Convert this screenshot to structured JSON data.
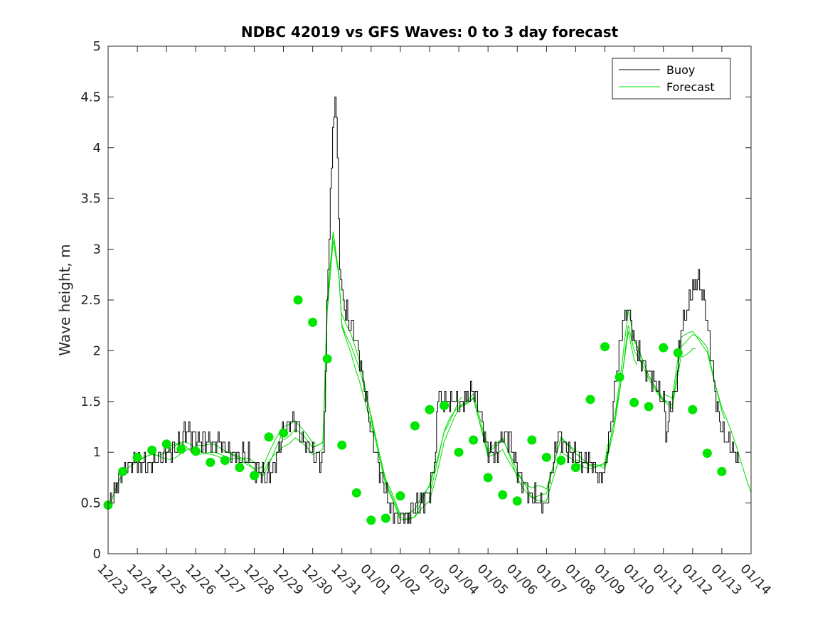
{
  "chart_data": {
    "type": "line",
    "title": "NDBC 42019 vs GFS Waves: 0 to 3 day forecast",
    "xlabel": "",
    "ylabel": "Wave height, m",
    "x_tick_labels": [
      "12/23",
      "12/24",
      "12/25",
      "12/26",
      "12/27",
      "12/28",
      "12/29",
      "12/30",
      "12/31",
      "01/01",
      "01/02",
      "01/03",
      "01/04",
      "01/05",
      "01/06",
      "01/07",
      "01/08",
      "01/09",
      "01/10",
      "01/11",
      "01/12",
      "01/13",
      "01/14"
    ],
    "xlim_days": [
      0,
      22
    ],
    "y_tick_labels": [
      "0",
      "0.5",
      "1",
      "1.5",
      "2",
      "2.5",
      "3",
      "3.5",
      "4",
      "4.5",
      "5"
    ],
    "ylim": [
      0,
      5
    ],
    "grid": false,
    "legend": {
      "position": "top-right",
      "entries": [
        {
          "label": "Buoy",
          "color": "#000000"
        },
        {
          "label": "Forecast",
          "color": "#00dd00"
        }
      ]
    },
    "colors": {
      "buoy": "#000000",
      "forecast": "#00dd00",
      "marker": "#00e600",
      "axis": "#262626"
    },
    "buoy_anchors": [
      [
        0.0,
        0.45
      ],
      [
        0.2,
        0.6
      ],
      [
        0.4,
        0.75
      ],
      [
        0.6,
        0.85
      ],
      [
        1.0,
        0.9
      ],
      [
        1.5,
        0.9
      ],
      [
        2.0,
        1.0
      ],
      [
        2.5,
        1.05
      ],
      [
        2.6,
        1.25
      ],
      [
        3.0,
        1.1
      ],
      [
        3.5,
        1.1
      ],
      [
        4.0,
        1.05
      ],
      [
        4.5,
        0.95
      ],
      [
        4.8,
        0.95
      ],
      [
        5.0,
        0.85
      ],
      [
        5.4,
        0.75
      ],
      [
        5.6,
        0.8
      ],
      [
        5.8,
        1.0
      ],
      [
        6.0,
        1.2
      ],
      [
        6.4,
        1.3
      ],
      [
        6.7,
        1.1
      ],
      [
        7.0,
        1.0
      ],
      [
        7.35,
        0.9
      ],
      [
        7.5,
        2.6
      ],
      [
        7.6,
        3.6
      ],
      [
        7.7,
        4.2
      ],
      [
        7.75,
        4.6
      ],
      [
        7.82,
        4.1
      ],
      [
        7.9,
        3.0
      ],
      [
        8.0,
        2.5
      ],
      [
        8.2,
        2.3
      ],
      [
        8.4,
        2.2
      ],
      [
        8.6,
        1.9
      ],
      [
        8.8,
        1.6
      ],
      [
        9.0,
        1.2
      ],
      [
        9.2,
        0.9
      ],
      [
        9.5,
        0.6
      ],
      [
        9.7,
        0.45
      ],
      [
        9.9,
        0.35
      ],
      [
        10.2,
        0.35
      ],
      [
        10.5,
        0.45
      ],
      [
        10.8,
        0.55
      ],
      [
        11.0,
        0.6
      ],
      [
        11.2,
        1.0
      ],
      [
        11.3,
        1.7
      ],
      [
        11.4,
        1.5
      ],
      [
        11.6,
        1.5
      ],
      [
        11.8,
        1.5
      ],
      [
        12.0,
        1.45
      ],
      [
        12.2,
        1.5
      ],
      [
        12.4,
        1.6
      ],
      [
        12.6,
        1.55
      ],
      [
        12.8,
        1.3
      ],
      [
        13.0,
        1.0
      ],
      [
        13.3,
        1.0
      ],
      [
        13.5,
        1.2
      ],
      [
        13.7,
        1.15
      ],
      [
        13.9,
        0.95
      ],
      [
        14.0,
        0.8
      ],
      [
        14.2,
        0.7
      ],
      [
        14.4,
        0.6
      ],
      [
        14.6,
        0.55
      ],
      [
        14.8,
        0.5
      ],
      [
        15.0,
        0.5
      ],
      [
        15.2,
        0.9
      ],
      [
        15.4,
        1.2
      ],
      [
        15.6,
        1.1
      ],
      [
        15.8,
        1.0
      ],
      [
        16.0,
        0.95
      ],
      [
        16.2,
        0.9
      ],
      [
        16.4,
        0.9
      ],
      [
        16.6,
        0.85
      ],
      [
        16.8,
        0.75
      ],
      [
        17.0,
        0.85
      ],
      [
        17.2,
        1.3
      ],
      [
        17.4,
        1.8
      ],
      [
        17.6,
        2.3
      ],
      [
        17.8,
        2.4
      ],
      [
        18.0,
        2.1
      ],
      [
        18.2,
        1.9
      ],
      [
        18.4,
        1.85
      ],
      [
        18.6,
        1.75
      ],
      [
        18.8,
        1.6
      ],
      [
        19.0,
        1.5
      ],
      [
        19.1,
        1.1
      ],
      [
        19.2,
        1.4
      ],
      [
        19.4,
        1.6
      ],
      [
        19.6,
        2.2
      ],
      [
        19.8,
        2.4
      ],
      [
        20.0,
        2.6
      ],
      [
        20.2,
        2.7
      ],
      [
        20.4,
        2.5
      ],
      [
        20.6,
        2.0
      ],
      [
        20.8,
        1.5
      ],
      [
        21.0,
        1.2
      ],
      [
        21.2,
        1.1
      ],
      [
        21.4,
        1.0
      ],
      [
        21.6,
        0.9
      ]
    ],
    "forecast_base": [
      [
        0.0,
        0.48
      ],
      [
        0.5,
        0.8
      ],
      [
        1.0,
        0.95
      ],
      [
        1.5,
        1.02
      ],
      [
        2.0,
        1.05
      ],
      [
        2.5,
        1.06
      ],
      [
        3.0,
        1.05
      ],
      [
        3.5,
        1.02
      ],
      [
        4.0,
        0.97
      ],
      [
        4.5,
        0.9
      ],
      [
        5.0,
        0.85
      ],
      [
        5.3,
        0.82
      ],
      [
        5.6,
        0.95
      ],
      [
        6.0,
        1.15
      ],
      [
        6.4,
        1.25
      ],
      [
        6.8,
        1.12
      ],
      [
        7.0,
        1.05
      ],
      [
        7.35,
        1.1
      ],
      [
        7.5,
        2.5
      ],
      [
        7.7,
        3.2
      ],
      [
        7.9,
        2.8
      ],
      [
        8.0,
        2.3
      ],
      [
        8.3,
        2.1
      ],
      [
        8.6,
        1.8
      ],
      [
        9.0,
        1.3
      ],
      [
        9.5,
        0.7
      ],
      [
        10.0,
        0.35
      ],
      [
        10.5,
        0.38
      ],
      [
        11.0,
        0.6
      ],
      [
        11.5,
        1.2
      ],
      [
        12.0,
        1.45
      ],
      [
        12.5,
        1.6
      ],
      [
        13.0,
        1.0
      ],
      [
        13.5,
        1.1
      ],
      [
        14.0,
        0.75
      ],
      [
        14.5,
        0.6
      ],
      [
        15.0,
        0.55
      ],
      [
        15.5,
        1.1
      ],
      [
        16.0,
        0.95
      ],
      [
        16.5,
        0.88
      ],
      [
        17.0,
        0.85
      ],
      [
        17.3,
        1.3
      ],
      [
        17.6,
        1.9
      ],
      [
        17.8,
        2.35
      ],
      [
        18.0,
        2.05
      ],
      [
        18.5,
        1.75
      ],
      [
        18.8,
        1.6
      ],
      [
        19.0,
        1.5
      ],
      [
        19.3,
        1.45
      ],
      [
        19.6,
        2.0
      ],
      [
        20.0,
        2.05
      ],
      [
        20.5,
        1.95
      ],
      [
        21.0,
        1.4
      ],
      [
        21.5,
        1.0
      ],
      [
        22.0,
        0.55
      ]
    ],
    "forecast_run_starts": [
      0,
      1,
      2,
      3,
      4,
      5,
      6,
      7,
      8,
      9,
      10,
      11,
      12,
      13,
      14,
      15,
      16,
      17,
      18,
      19
    ],
    "markers": [
      [
        0.0,
        0.48
      ],
      [
        0.5,
        0.81
      ],
      [
        1.0,
        0.95
      ],
      [
        1.5,
        1.02
      ],
      [
        2.0,
        1.08
      ],
      [
        2.5,
        1.03
      ],
      [
        3.0,
        1.01
      ],
      [
        3.5,
        0.9
      ],
      [
        4.0,
        0.92
      ],
      [
        4.5,
        0.85
      ],
      [
        5.0,
        0.77
      ],
      [
        5.5,
        1.15
      ],
      [
        6.0,
        1.19
      ],
      [
        6.5,
        2.5
      ],
      [
        7.0,
        2.28
      ],
      [
        7.5,
        1.92
      ],
      [
        8.0,
        1.07
      ],
      [
        8.5,
        0.6
      ],
      [
        9.0,
        0.33
      ],
      [
        9.5,
        0.35
      ],
      [
        10.0,
        0.57
      ],
      [
        10.5,
        1.26
      ],
      [
        11.0,
        1.42
      ],
      [
        11.5,
        1.46
      ],
      [
        12.0,
        1.0
      ],
      [
        12.5,
        1.12
      ],
      [
        13.0,
        0.75
      ],
      [
        13.5,
        0.58
      ],
      [
        14.0,
        0.52
      ],
      [
        14.5,
        1.12
      ],
      [
        15.0,
        0.95
      ],
      [
        15.5,
        0.92
      ],
      [
        16.0,
        0.85
      ],
      [
        16.5,
        1.52
      ],
      [
        17.0,
        2.04
      ],
      [
        17.5,
        1.74
      ],
      [
        18.0,
        1.49
      ],
      [
        18.5,
        1.45
      ],
      [
        19.0,
        2.03
      ],
      [
        19.5,
        1.98
      ],
      [
        20.0,
        1.42
      ],
      [
        20.5,
        0.99
      ],
      [
        21.0,
        0.81
      ]
    ]
  }
}
